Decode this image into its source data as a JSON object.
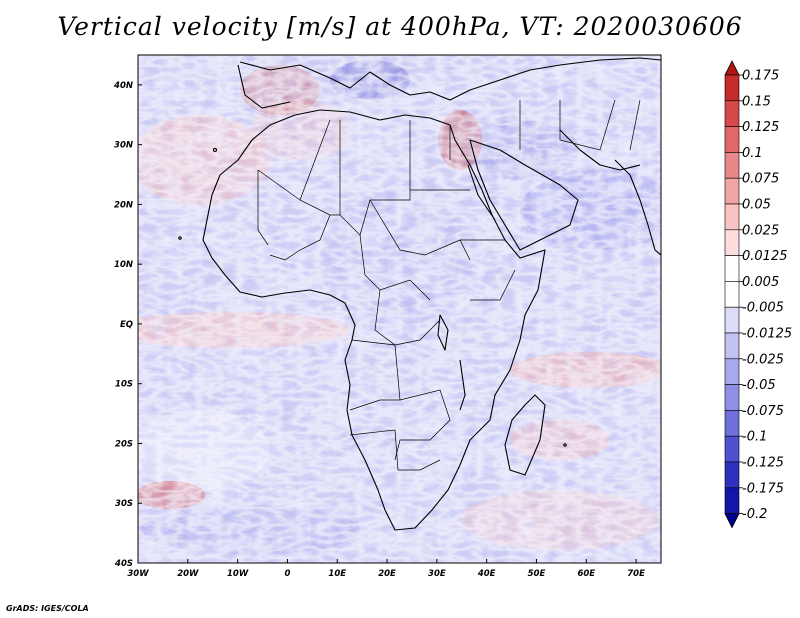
{
  "title": "Vertical velocity [m/s] at 400hPa, VT: 2020030606",
  "footer": "GrADS: IGES/COLA",
  "map": {
    "lat_ticks": [
      "40N",
      "30N",
      "20N",
      "10N",
      "EQ",
      "10S",
      "20S",
      "30S",
      "40S"
    ],
    "lon_ticks": [
      "30W",
      "20W",
      "10W",
      "0",
      "10E",
      "20E",
      "30E",
      "40E",
      "50E",
      "60E",
      "70E"
    ],
    "lat_range": [
      -40,
      45
    ],
    "lon_range": [
      -30,
      75
    ]
  },
  "colorbar": {
    "labels": [
      "0.175",
      "0.15",
      "0.125",
      "0.1",
      "0.075",
      "0.05",
      "0.025",
      "0.0125",
      "0.005",
      "-0.005",
      "-0.0125",
      "-0.025",
      "-0.05",
      "-0.075",
      "-0.1",
      "-0.125",
      "-0.175",
      "-0.2"
    ],
    "colors": [
      "#b31515",
      "#c42b2b",
      "#d74848",
      "#e06868",
      "#e98888",
      "#f1a6a6",
      "#f8c3c3",
      "#fcdcdc",
      "#ffffff",
      "#ffffff",
      "#dcdcf8",
      "#c2c2f3",
      "#a8a8ee",
      "#8f8fe8",
      "#7070dd",
      "#5050d0",
      "#3030c0",
      "#1515a8",
      "#000090"
    ]
  }
}
